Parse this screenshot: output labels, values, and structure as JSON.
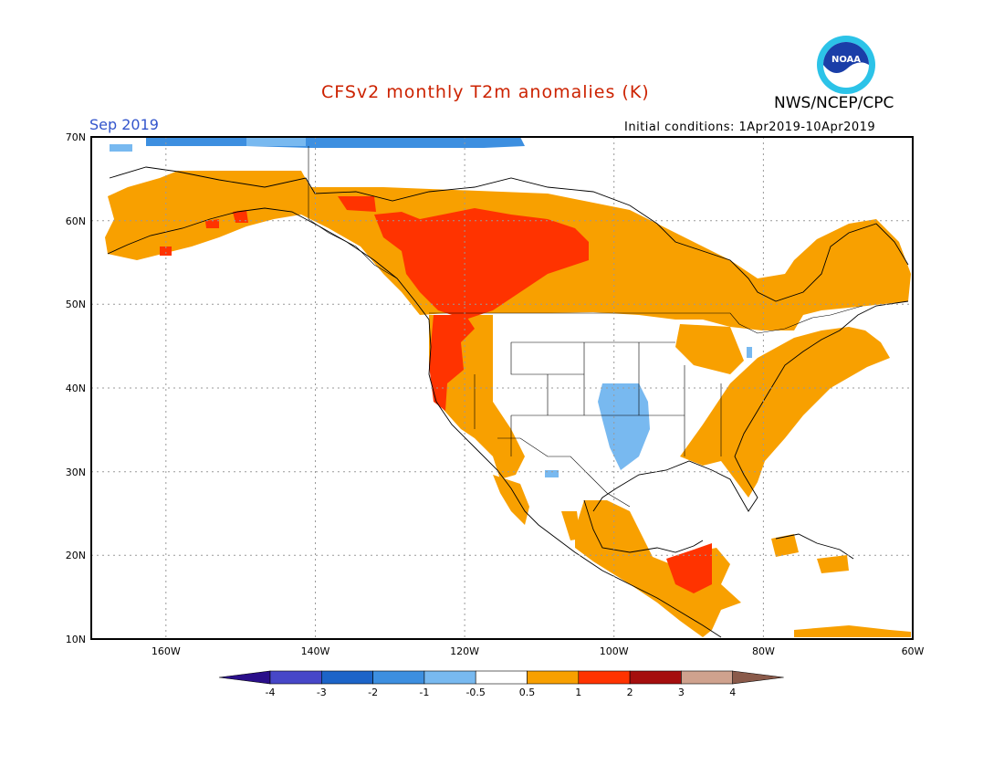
{
  "header": {
    "title": "CFSv2 monthly T2m anomalies (K)",
    "agency": "NWS/NCEP/CPC",
    "month": "Sep 2019",
    "initial_conditions": "Initial conditions: 1Apr2019-10Apr2019"
  },
  "colors": {
    "title": "#cc2200",
    "month": "#3355cc",
    "orange": "#f8a000",
    "red": "#ff3300",
    "light_blue": "#78b9f0",
    "mid_blue": "#3d8fe0"
  },
  "logo": {
    "icon": "noaa-logo",
    "text": "NOAA"
  },
  "map": {
    "lat_labels": [
      "70N",
      "60N",
      "50N",
      "40N",
      "30N",
      "20N",
      "10N"
    ],
    "lon_labels": [
      "160W",
      "140W",
      "120W",
      "100W",
      "80W",
      "60W"
    ]
  },
  "colorbar": {
    "labels": [
      "-4",
      "-3",
      "-2",
      "-1",
      "-0.5",
      "0.5",
      "1",
      "2",
      "3",
      "4"
    ],
    "colors": [
      "#2a0f8a",
      "#4747c8",
      "#1c64c8",
      "#3d8fe0",
      "#78b9f0",
      "#ffffff",
      "#f8a000",
      "#ff3300",
      "#a50e0e",
      "#cfa28e",
      "#8a5a4a"
    ]
  }
}
